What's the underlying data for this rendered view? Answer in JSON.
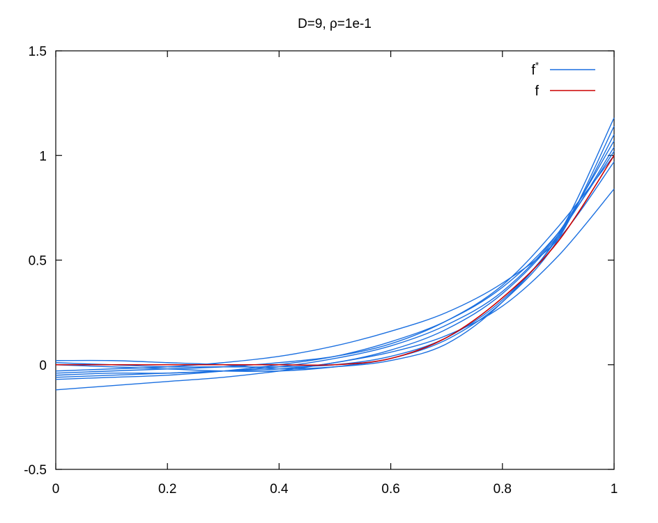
{
  "chart_data": {
    "type": "line",
    "title": "D=9, ρ=1e-1",
    "xlabel": "",
    "ylabel": "",
    "xlim": [
      0,
      1
    ],
    "ylim": [
      -0.5,
      1.5
    ],
    "x_ticks": [
      0,
      0.2,
      0.4,
      0.6,
      0.8,
      1
    ],
    "x_tick_labels": [
      "0",
      "0.2",
      "0.4",
      "0.6",
      "0.8",
      "1"
    ],
    "y_ticks": [
      -0.5,
      0,
      0.5,
      1,
      1.5
    ],
    "y_tick_labels": [
      "-0.5",
      "0",
      "0.5",
      "1",
      "1.5"
    ],
    "grid": false,
    "legend_position": "top-right",
    "x": [
      0,
      0.1,
      0.2,
      0.3,
      0.4,
      0.5,
      0.6,
      0.7,
      0.8,
      0.9,
      1.0
    ],
    "series": [
      {
        "name": "f*",
        "legend_name": "f",
        "legend_sup": "*",
        "color": "#1a6fe0",
        "values": [
          -0.12,
          -0.1,
          -0.08,
          -0.06,
          -0.03,
          0.01,
          0.06,
          0.14,
          0.28,
          0.52,
          0.84
        ]
      },
      {
        "color": "#1a6fe0",
        "values": [
          0.02,
          0.02,
          0.01,
          0.0,
          -0.02,
          -0.01,
          0.02,
          0.1,
          0.3,
          0.62,
          1.18
        ]
      },
      {
        "color": "#1a6fe0",
        "values": [
          -0.06,
          -0.05,
          -0.04,
          -0.03,
          -0.02,
          0.01,
          0.07,
          0.17,
          0.34,
          0.62,
          1.04
        ]
      },
      {
        "color": "#1a6fe0",
        "values": [
          -0.04,
          -0.03,
          -0.02,
          -0.01,
          0.01,
          0.04,
          0.1,
          0.21,
          0.38,
          0.66,
          1.0
        ]
      },
      {
        "color": "#1a6fe0",
        "values": [
          0.01,
          0.0,
          -0.01,
          -0.01,
          -0.01,
          0.0,
          0.04,
          0.13,
          0.31,
          0.61,
          1.1
        ]
      },
      {
        "color": "#1a6fe0",
        "values": [
          -0.03,
          -0.02,
          -0.01,
          0.01,
          0.04,
          0.09,
          0.16,
          0.25,
          0.39,
          0.6,
          0.97
        ]
      },
      {
        "color": "#1a6fe0",
        "values": [
          -0.07,
          -0.06,
          -0.05,
          -0.03,
          0.0,
          0.04,
          0.11,
          0.21,
          0.37,
          0.63,
          1.02
        ]
      },
      {
        "color": "#1a6fe0",
        "values": [
          0.0,
          -0.01,
          -0.02,
          -0.03,
          -0.03,
          -0.01,
          0.03,
          0.12,
          0.3,
          0.6,
          1.14
        ]
      },
      {
        "color": "#1a6fe0",
        "values": [
          -0.05,
          -0.04,
          -0.04,
          -0.03,
          -0.01,
          0.03,
          0.09,
          0.19,
          0.35,
          0.63,
          1.07
        ]
      },
      {
        "name": "f",
        "legend_name": "f",
        "color": "#cc0000",
        "values": [
          0.0,
          0.0,
          0.0,
          0.0,
          0.0,
          0.0,
          0.03,
          0.13,
          0.32,
          0.59,
          1.0
        ]
      }
    ]
  }
}
